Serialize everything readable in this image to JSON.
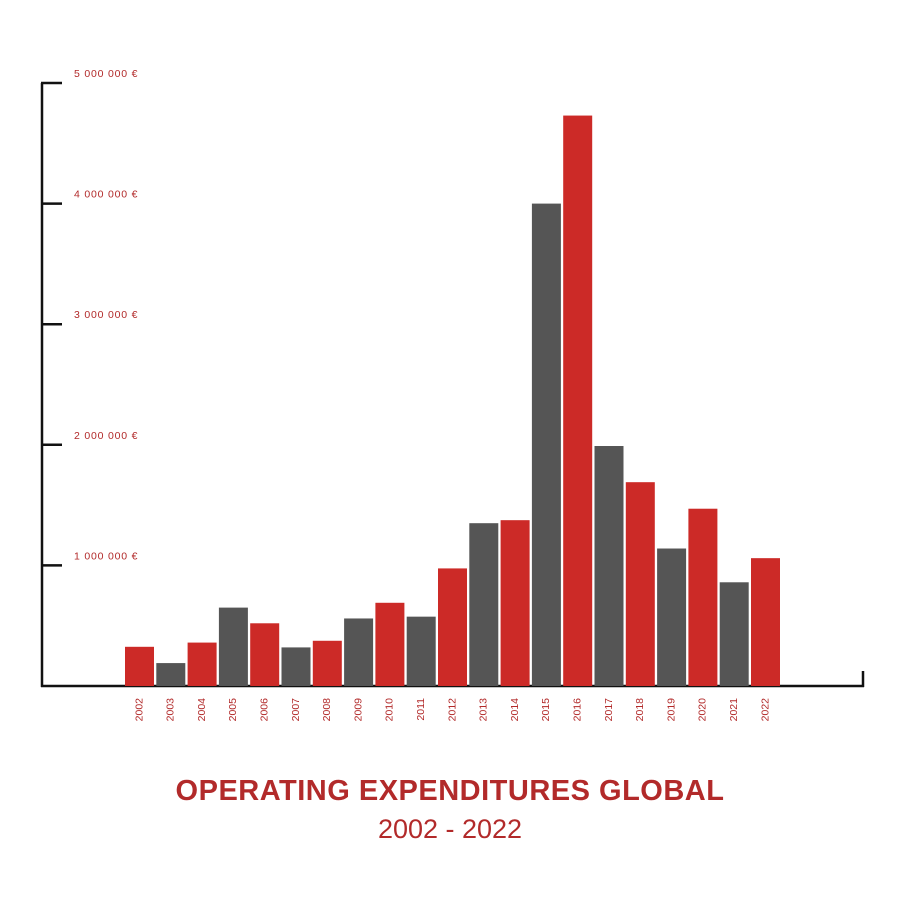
{
  "chart_data": {
    "type": "bar",
    "title": "OPERATING EXPENDITURES GLOBAL",
    "subtitle": "2002 - 2022",
    "xlabel": "",
    "ylabel": "",
    "ylim": [
      0,
      5000000
    ],
    "yticks": [
      1000000,
      2000000,
      3000000,
      4000000,
      5000000
    ],
    "ytick_labels": [
      "1 000 000 €",
      "2 000 000 €",
      "3 000 000 €",
      "4 000 000 €",
      "5 000 000 €"
    ],
    "categories": [
      "2002",
      "2003",
      "2004",
      "2005",
      "2006",
      "2007",
      "2008",
      "2009",
      "2010",
      "2011",
      "2012",
      "2013",
      "2014",
      "2015",
      "2016",
      "2017",
      "2018",
      "2019",
      "2020",
      "2021",
      "2022"
    ],
    "values": [
      325000,
      190000,
      360000,
      650000,
      520000,
      320000,
      375000,
      560000,
      690000,
      575000,
      975000,
      1350000,
      1375000,
      4000000,
      4730000,
      1990000,
      1690000,
      1140000,
      1470000,
      860000,
      1060000
    ],
    "colors": {
      "red": "#cc2a27",
      "gray": "#555555",
      "text": "#b22a2a",
      "axis": "#111111"
    },
    "grid": false
  }
}
